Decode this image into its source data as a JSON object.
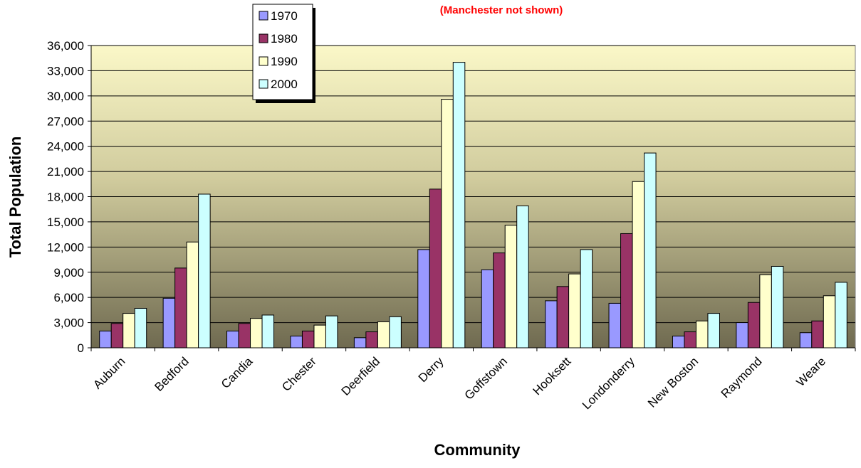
{
  "chart_data": {
    "type": "bar",
    "subtitle": "(Manchester not shown)",
    "xlabel": "Community",
    "ylabel": "Total Population",
    "ylim": [
      0,
      36000
    ],
    "ytick_step": 3000,
    "ytick_labels": [
      "0",
      "3,000",
      "6,000",
      "9,000",
      "12,000",
      "15,000",
      "18,000",
      "21,000",
      "24,000",
      "27,000",
      "30,000",
      "33,000",
      "36,000"
    ],
    "grid": true,
    "legend_position": "top-left",
    "categories": [
      "Auburn",
      "Bedford",
      "Candia",
      "Chester",
      "Deerfield",
      "Derry",
      "Goffstown",
      "Hooksett",
      "Londonderry",
      "New Boston",
      "Raymond",
      "Weare"
    ],
    "series": [
      {
        "name": "1970",
        "color": "#9999ff",
        "values": [
          2000,
          5900,
          2000,
          1400,
          1200,
          11700,
          9300,
          5600,
          5300,
          1400,
          3000,
          1800
        ]
      },
      {
        "name": "1980",
        "color": "#993366",
        "values": [
          2900,
          9500,
          2900,
          2000,
          1900,
          18900,
          11300,
          7300,
          13600,
          1900,
          5400,
          3200
        ]
      },
      {
        "name": "1990",
        "color": "#ffffcc",
        "values": [
          4100,
          12600,
          3500,
          2700,
          3100,
          29600,
          14600,
          8800,
          19800,
          3200,
          8700,
          6200
        ]
      },
      {
        "name": "2000",
        "color": "#ccffff",
        "values": [
          4700,
          18300,
          3900,
          3800,
          3700,
          34000,
          16900,
          11700,
          23200,
          4100,
          9700,
          7800
        ]
      }
    ],
    "plot_background_top": "#fbf8c8",
    "plot_background_bottom": "#6f6a50"
  }
}
